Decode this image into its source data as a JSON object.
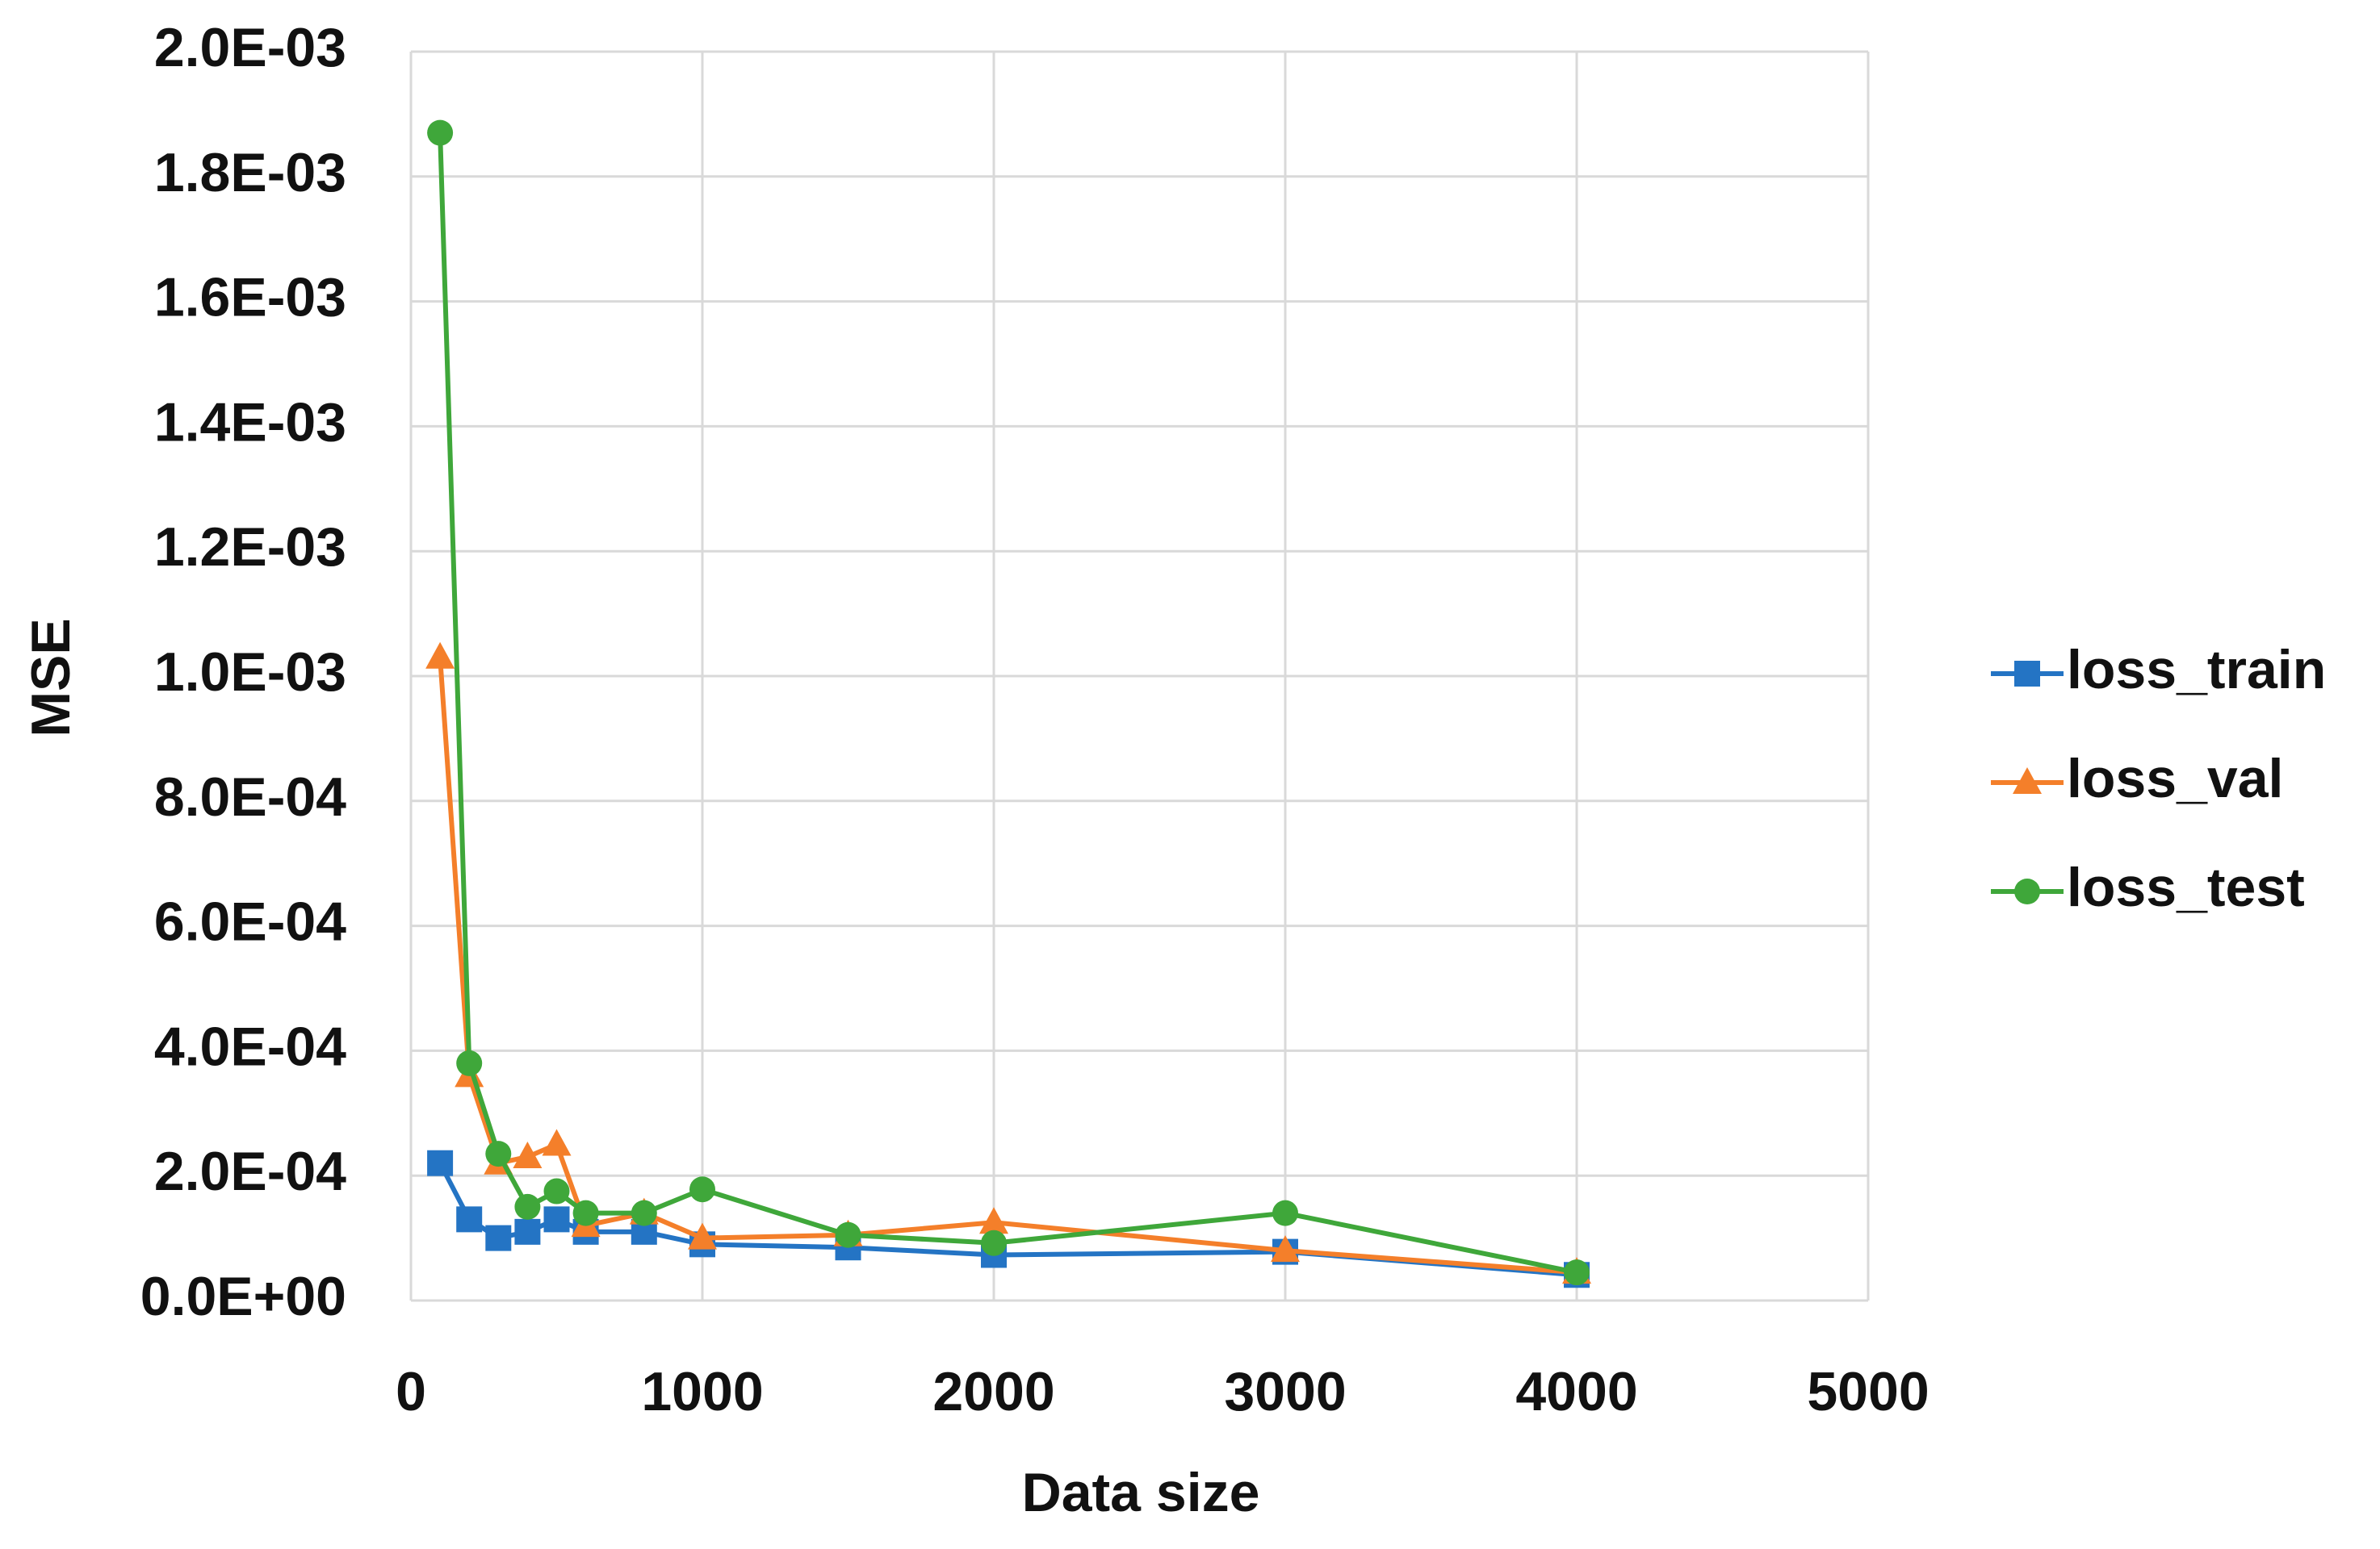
{
  "chart_data": {
    "type": "line",
    "x_label": "Data size",
    "y_label": "MSE",
    "x": [
      100,
      200,
      300,
      400,
      500,
      600,
      800,
      1000,
      1500,
      2000,
      3000,
      4000
    ],
    "series": [
      {
        "name": "loss_train",
        "color": "#2474c4",
        "marker": "square",
        "values": [
          0.00022,
          0.00013,
          0.0001,
          0.00011,
          0.00013,
          0.00011,
          0.00011,
          9e-05,
          8.5e-05,
          7.3e-05,
          7.8e-05,
          4.1e-05
        ]
      },
      {
        "name": "loss_val",
        "color": "#f47f2a",
        "marker": "triangle",
        "values": [
          0.00103,
          0.00036,
          0.00022,
          0.00023,
          0.00025,
          0.00012,
          0.00014,
          0.0001,
          0.000105,
          0.000125,
          8e-05,
          4.5e-05
        ]
      },
      {
        "name": "loss_test",
        "color": "#3fa73a",
        "marker": "circle",
        "values": [
          0.00187,
          0.00038,
          0.000235,
          0.00015,
          0.000175,
          0.00014,
          0.00014,
          0.000178,
          0.000105,
          9.2e-05,
          0.00014,
          4.5e-05
        ]
      }
    ],
    "xlim": [
      0,
      5000
    ],
    "xticks": [
      0,
      1000,
      2000,
      3000,
      4000,
      5000
    ],
    "ylim": [
      0,
      0.002
    ],
    "yticks": [
      {
        "value": 0,
        "label": "0.0E+00"
      },
      {
        "value": 0.0002,
        "label": "2.0E-04"
      },
      {
        "value": 0.0004,
        "label": "4.0E-04"
      },
      {
        "value": 0.0006,
        "label": "6.0E-04"
      },
      {
        "value": 0.0008,
        "label": "8.0E-04"
      },
      {
        "value": 0.001,
        "label": "1.0E-03"
      },
      {
        "value": 0.0012,
        "label": "1.2E-03"
      },
      {
        "value": 0.0014,
        "label": "1.4E-03"
      },
      {
        "value": 0.0016,
        "label": "1.6E-03"
      },
      {
        "value": 0.0018,
        "label": "1.8E-03"
      },
      {
        "value": 0.002,
        "label": "2.0E-03"
      }
    ],
    "grid": true,
    "legend": "right"
  }
}
